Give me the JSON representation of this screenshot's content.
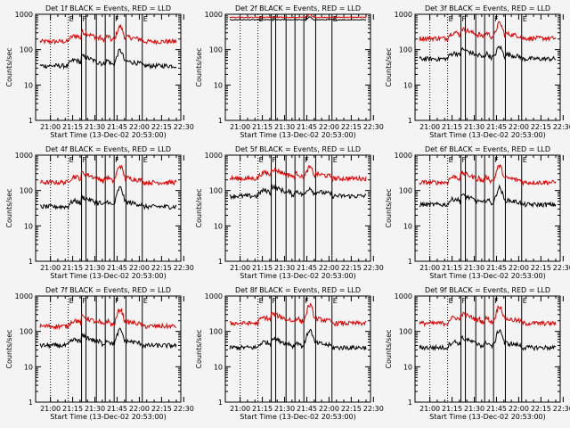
{
  "colors": {
    "events": "#000000",
    "lld": "#e00000",
    "background": "#f4f4f4"
  },
  "chart_data": {
    "type": "line",
    "y_scale": "log",
    "ylim": [
      1,
      1000
    ],
    "ylabel": "Counts/sec",
    "x_tick_labels": [
      "21:00",
      "21:15",
      "21:30",
      "21:45",
      "22:00",
      "22:15",
      "22:30"
    ],
    "xlim_minutes": [
      -3,
      95
    ],
    "xlabel": "Start Time (13-Dec-02 20:53:00)",
    "y_tick_labels": [
      "1",
      "10",
      "100",
      "1000"
    ],
    "y_tick_values": [
      1,
      10,
      100,
      1000
    ],
    "marker_letters": [
      "E",
      "F"
    ],
    "dotted_markers_minutes": [
      7,
      19
    ],
    "flag_markers_minutes": [
      28,
      31,
      38,
      44,
      50,
      58,
      69
    ],
    "marker_labels_min": [
      {
        "t": 19,
        "label": "E"
      },
      {
        "t": 28,
        "label": "F"
      },
      {
        "t": 50,
        "label": "F"
      },
      {
        "t": 69,
        "label": "E"
      }
    ],
    "panels": [
      {
        "title": "Det 1f BLACK = Events, RED = LLD",
        "red_base": 170,
        "black_base": 35,
        "red_peak": 450,
        "black_peak": 95
      },
      {
        "title": "Det 2f BLACK = Events, RED = LLD",
        "red_base": 820,
        "black_base": 700,
        "red_peak": 1000,
        "black_peak": 850
      },
      {
        "title": "Det 3f BLACK = Events, RED = LLD",
        "red_base": 210,
        "black_base": 55,
        "red_peak": 560,
        "black_peak": 120
      },
      {
        "title": "Det 4f BLACK = Events, RED = LLD",
        "red_base": 170,
        "black_base": 35,
        "red_peak": 500,
        "black_peak": 120
      },
      {
        "title": "Det 5f BLACK = Events, RED = LLD",
        "red_base": 220,
        "black_base": 70,
        "red_peak": 450,
        "black_peak": 120
      },
      {
        "title": "Det 6f BLACK = Events, RED = LLD",
        "red_base": 170,
        "black_base": 40,
        "red_peak": 500,
        "black_peak": 120
      },
      {
        "title": "Det 7f BLACK = Events, RED = LLD",
        "red_base": 140,
        "black_base": 40,
        "red_peak": 420,
        "black_peak": 110
      },
      {
        "title": "Det 8f BLACK = Events, RED = LLD",
        "red_base": 170,
        "black_base": 35,
        "red_peak": 550,
        "black_peak": 110
      },
      {
        "title": "Det 9f BLACK = Events, RED = LLD",
        "red_base": 170,
        "black_base": 35,
        "red_peak": 520,
        "black_peak": 110
      }
    ]
  }
}
